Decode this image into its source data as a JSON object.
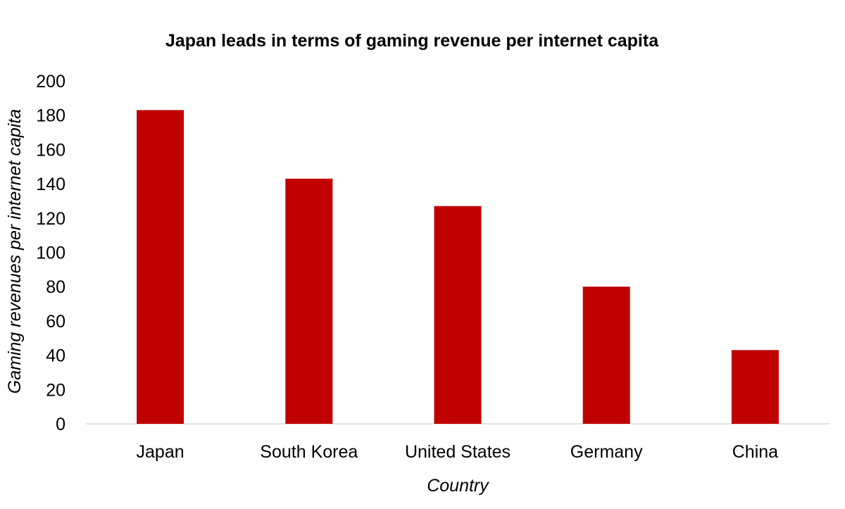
{
  "chart_data": {
    "type": "bar",
    "title": "Japan leads in terms of gaming revenue per internet capita",
    "xlabel": "Country",
    "ylabel": "Gaming revenues per internet capita",
    "categories": [
      "Japan",
      "South Korea",
      "United States",
      "Germany",
      "China"
    ],
    "values": [
      183,
      143,
      127,
      80,
      43
    ],
    "ylim": [
      0,
      200
    ],
    "yticks": [
      0,
      20,
      40,
      60,
      80,
      100,
      120,
      140,
      160,
      180,
      200
    ],
    "grid": false,
    "legend": "none",
    "bar_color": "#c00000"
  }
}
